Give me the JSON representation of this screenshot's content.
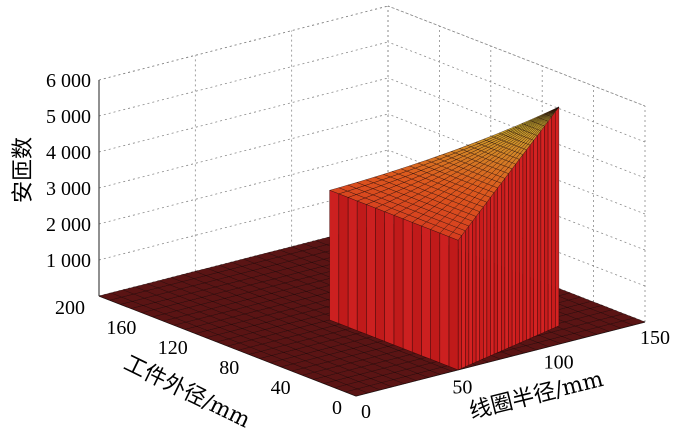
{
  "chart_data": {
    "type": "surface3d",
    "title": "",
    "zlabel": "安匝数",
    "ylabel": "工件外径/mm",
    "xlabel": "线圈半径/mm",
    "z_ticks": [
      "1 000",
      "2 000",
      "3 000",
      "4 000",
      "5 000",
      "6 000"
    ],
    "y_ticks": [
      "0",
      "40",
      "80",
      "120",
      "160",
      "200"
    ],
    "x_ticks": [
      "0",
      "50",
      "100",
      "150"
    ],
    "xlim": [
      0,
      150
    ],
    "ylim": [
      0,
      200
    ],
    "zlim": [
      0,
      6000
    ],
    "grid": true,
    "colormap": [
      "#5a1010",
      "#d02020",
      "#e05a20",
      "#c8b430"
    ],
    "surface": {
      "description_region": "nonzero only where coil radius > workpiece outer radius",
      "corner_values": [
        {
          "coil_radius": 53,
          "workpiece_diameter": 100,
          "ampere_turns": 3600
        },
        {
          "coil_radius": 120,
          "workpiece_diameter": 100,
          "ampere_turns": 6100
        },
        {
          "coil_radius": 53,
          "workpiece_diameter": 0,
          "ampere_turns": 0
        }
      ]
    }
  }
}
